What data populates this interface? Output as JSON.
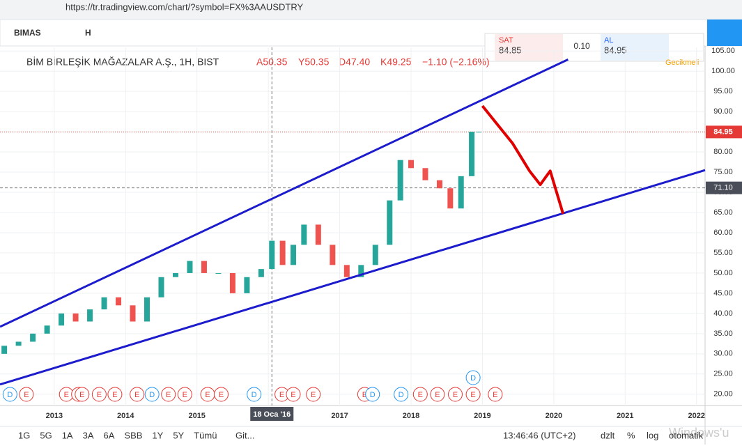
{
  "browser": {
    "url": "https://tr.tradingview.com/chart/?symbol=FX%3AAUSDTRY"
  },
  "toolbar": {
    "symbol": "BIMAS",
    "interval": "H"
  },
  "legend": {
    "name": "BİM BİRLEŞİK MAĞAZALAR A.Ş., 1H, BIST",
    "open": "A50.35",
    "high": "Y50.35",
    "low": "D47.40",
    "close": "K49.25",
    "change": "−1.10 (−2.16%)",
    "status": "Gecikmeli"
  },
  "trade": {
    "sell_label": "SAT",
    "sell": "84.85",
    "spread": "0.10",
    "buy_label": "AL",
    "buy": "84.95"
  },
  "bottom_bar": {
    "ranges": [
      "1G",
      "5G",
      "1A",
      "3A",
      "6A",
      "SBB",
      "1Y",
      "5Y",
      "Tümü"
    ],
    "goto": "Git...",
    "time": "13:46:46 (UTC+2)",
    "options": [
      "dzlt",
      "%",
      "log",
      "otomatik"
    ]
  },
  "watermark": "Windows'u",
  "chart_data": {
    "type": "candlestick",
    "x": [
      2012.3,
      2012.5,
      2012.7,
      2012.9,
      2013.1,
      2013.3,
      2013.5,
      2013.7,
      2013.9,
      2014.1,
      2014.3,
      2014.5,
      2014.7,
      2014.9,
      2015.1,
      2015.3,
      2015.5,
      2015.7,
      2015.9,
      2016.05,
      2016.2,
      2016.35,
      2016.5,
      2016.7,
      2016.9,
      2017.1,
      2017.3,
      2017.5,
      2017.7,
      2017.85,
      2018.0,
      2018.2,
      2018.4,
      2018.55,
      2018.7,
      2018.85,
      2018.95
    ],
    "open": [
      30,
      32,
      33,
      35,
      37,
      40,
      38,
      41,
      44,
      42,
      38,
      44,
      49,
      50,
      53,
      50,
      50,
      45,
      49,
      51,
      58,
      52,
      57,
      62,
      57,
      52,
      49,
      52,
      57,
      68,
      78,
      76,
      73,
      71,
      66,
      74,
      85
    ],
    "close": [
      32,
      33,
      35,
      37,
      40,
      38,
      41,
      44,
      42,
      38,
      44,
      49,
      50,
      53,
      50,
      50,
      45,
      49,
      51,
      58,
      52,
      57,
      62,
      57,
      52,
      49,
      52,
      57,
      68,
      78,
      76,
      73,
      71,
      66,
      74,
      85,
      85
    ],
    "up_color": "#26a69a",
    "down_color": "#ef5350",
    "xlim": [
      2012.24,
      2022.12
    ],
    "ylim": [
      17.2,
      105.9
    ],
    "xticks": [
      2013,
      2014,
      2015,
      2016,
      2017,
      2018,
      2019,
      2020,
      2021,
      2022
    ],
    "yticks": [
      {
        "value": 20,
        "label": "20.00"
      },
      {
        "value": 25,
        "label": "25.00"
      },
      {
        "value": 30,
        "label": "30.00"
      },
      {
        "value": 35,
        "label": "35.00"
      },
      {
        "value": 40,
        "label": "40.00"
      },
      {
        "value": 45,
        "label": "45.00"
      },
      {
        "value": 50,
        "label": "50.00"
      },
      {
        "value": 55,
        "label": "55.00"
      },
      {
        "value": 60,
        "label": "60.00"
      },
      {
        "value": 65,
        "label": "65.00"
      },
      {
        "value": 70,
        "label": "70.00"
      },
      {
        "value": 75,
        "label": "75.00"
      },
      {
        "value": 80,
        "label": "80.00"
      },
      {
        "value": 85,
        "label": "85.00"
      },
      {
        "value": 90,
        "label": "90.00"
      },
      {
        "value": 95,
        "label": "95.00"
      },
      {
        "value": 100,
        "label": "100.00"
      },
      {
        "value": 105,
        "label": "105.00"
      }
    ],
    "grid": true,
    "lines": [
      {
        "x": [
          2012.24,
          2020.2
        ],
        "values": [
          36.7,
          102.9
        ],
        "color": "#1c1ccc"
      },
      {
        "x": [
          2012.24,
          2022.12
        ],
        "values": [
          22.4,
          75.5
        ],
        "color": "#1c1ccc"
      },
      {
        "x": [
          2019.0,
          2019.42,
          2019.66,
          2019.81,
          2019.95,
          2020.13
        ],
        "values": [
          91.4,
          82.2,
          75.3,
          71.9,
          75.3,
          64.7
        ],
        "color": "#e00000"
      }
    ],
    "last_price": {
      "value": 84.95,
      "label": "84.95",
      "color": "#e53935"
    },
    "crosshair": {
      "price": {
        "value": 71.1,
        "label": "71.10"
      },
      "time": "18 Oca '16",
      "x": 2016.05
    },
    "events": {
      "x": [
        2012.38,
        2012.61,
        2013.17,
        2013.34,
        2013.39,
        2013.63,
        2013.85,
        2014.16,
        2014.37,
        2014.6,
        2014.83,
        2015.15,
        2015.34,
        2015.8,
        2016.19,
        2016.35,
        2016.63,
        2017.35,
        2017.46,
        2017.86,
        2018.13,
        2018.37,
        2018.62,
        2018.87,
        2018.87,
        2019.18
      ],
      "labels": [
        "D",
        "E",
        "E",
        "E",
        "E",
        "E",
        "E",
        "E",
        "D",
        "E",
        "E",
        "E",
        "E",
        "D",
        "E",
        "E",
        "E",
        "E",
        "D",
        "D",
        "E",
        "E",
        "E",
        "E",
        "D",
        "E"
      ]
    }
  }
}
